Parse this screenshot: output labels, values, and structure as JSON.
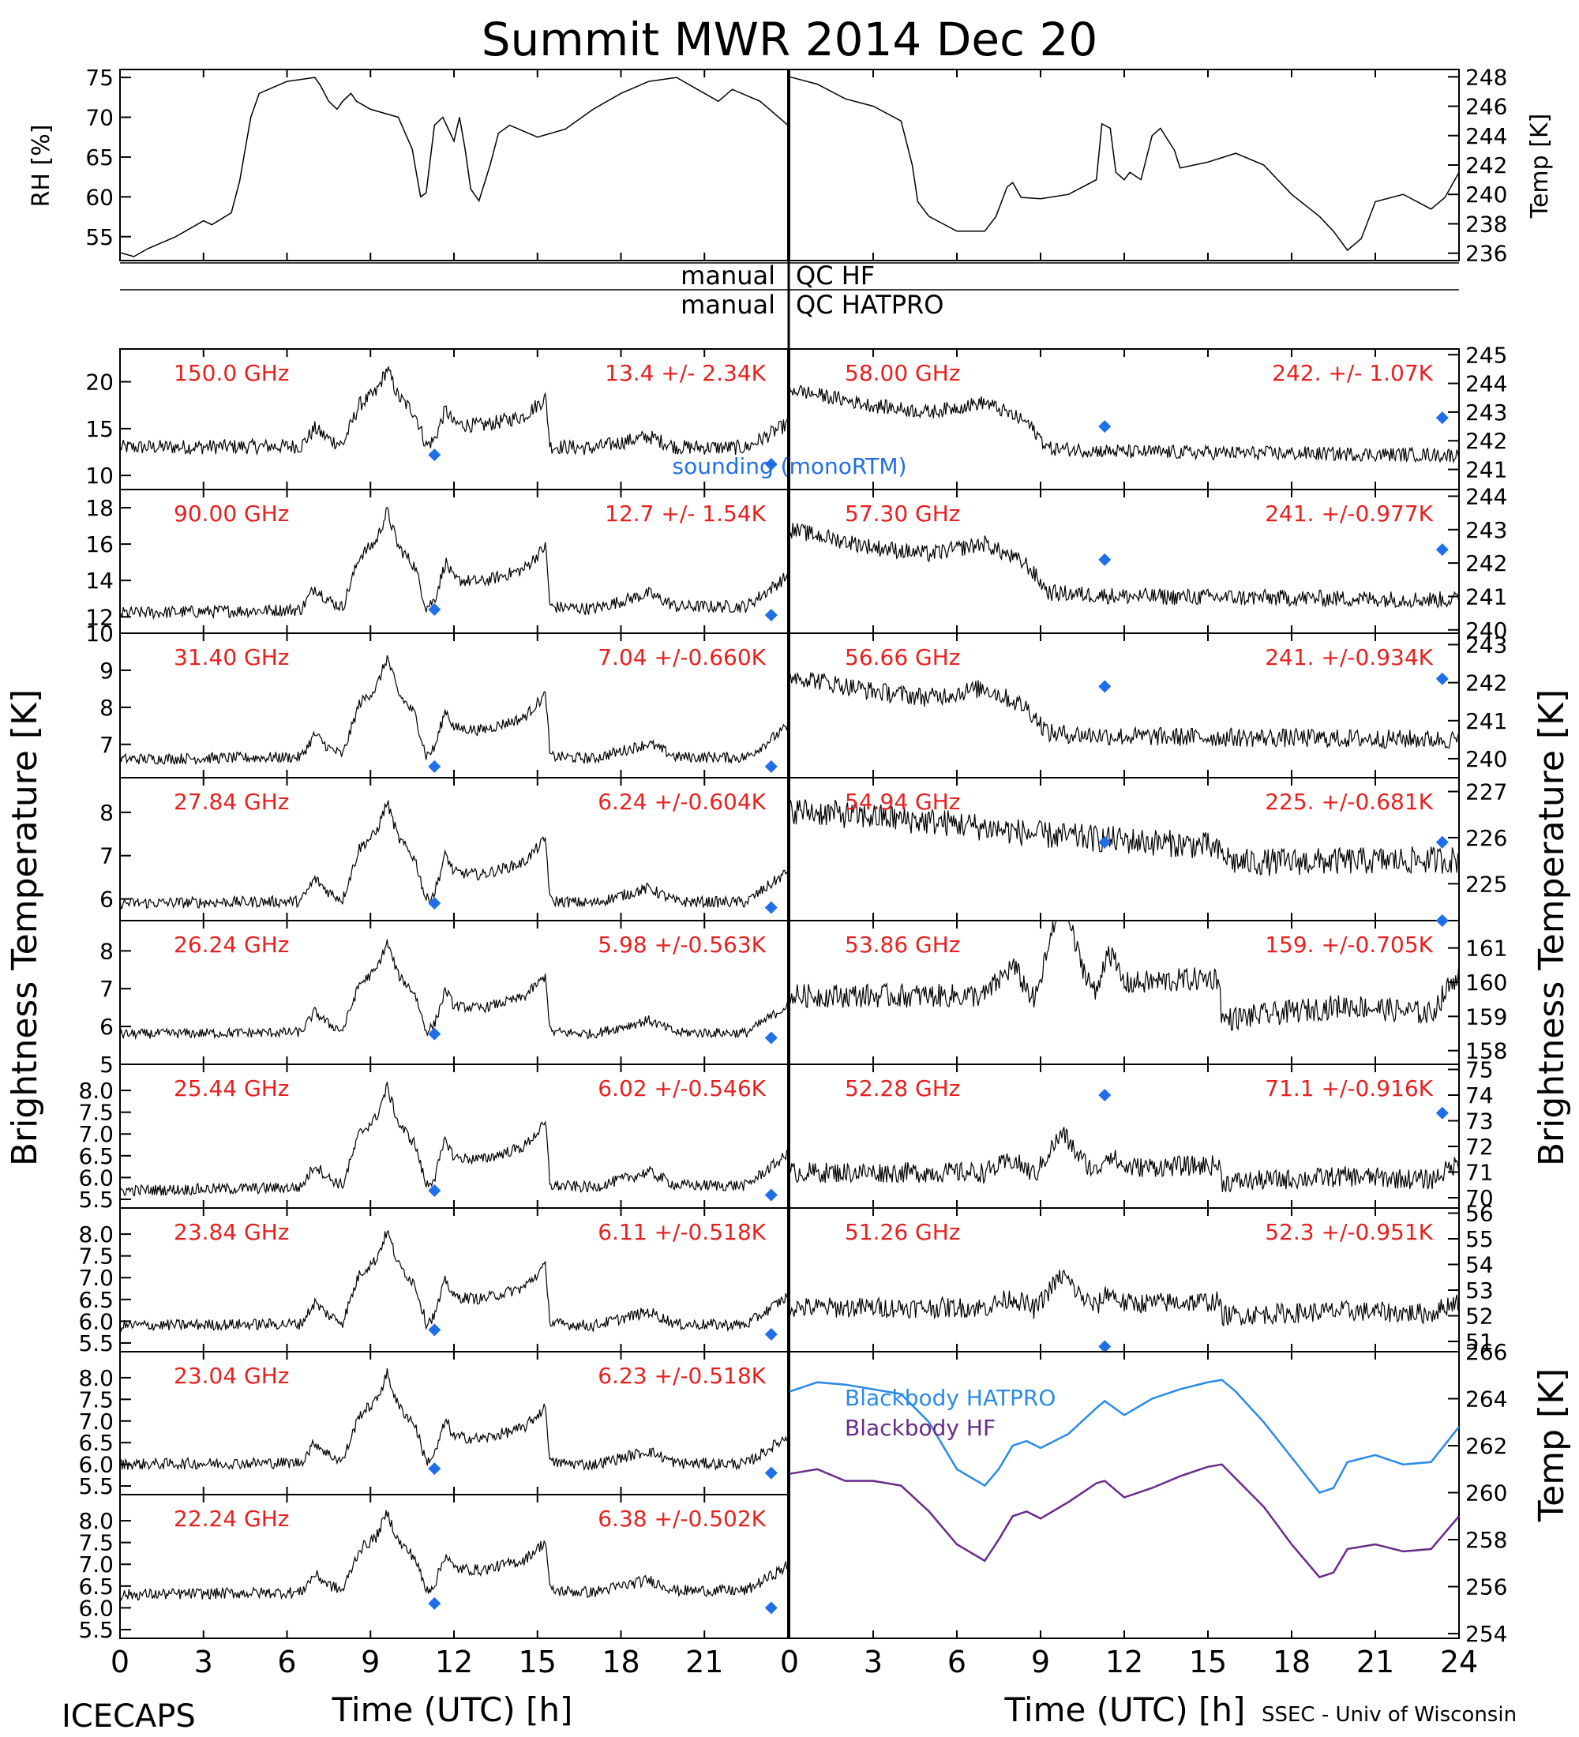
{
  "title": "Summit MWR 2014 Dec 20",
  "footer_left": "ICECAPS",
  "footer_right": "SSEC - Univ of Wisconsin",
  "x_axis": {
    "label": "Time (UTC) [h]",
    "range": [
      0,
      24
    ],
    "ticks": [
      "0",
      "3",
      "6",
      "9",
      "12",
      "15",
      "18",
      "21"
    ],
    "ticks_right": [
      "0",
      "3",
      "6",
      "9",
      "12",
      "15",
      "18",
      "21",
      "24"
    ]
  },
  "left_axis_label": "Brightness Temperature [K]",
  "right_axis_label": "Brightness Temperature [K]",
  "qc": {
    "hf": "manual QC HF",
    "hatpro": "manual QC HATPRO",
    "left_word": "manual",
    "hf_right": "QC HF",
    "hatpro_right": "QC HATPRO"
  },
  "sounding_label": "sounding (monoRTM)",
  "colors": {
    "label_red": "#e82020",
    "sounding_blue": "#1f6fe8",
    "hatpro_blue": "#2a8ae8",
    "hf_purple": "#6a2a8a"
  },
  "chart_data": [
    {
      "type": "line",
      "id": "met",
      "left": {
        "label": "RH [%]",
        "ylim": [
          52,
          76
        ],
        "ticks": [
          "55",
          "60",
          "65",
          "70",
          "75"
        ]
      },
      "right": {
        "label": "Temp [K]",
        "ylim": [
          235.5,
          248.5
        ],
        "ticks": [
          "236",
          "238",
          "240",
          "242",
          "244",
          "246",
          "248"
        ]
      },
      "series": [
        {
          "axis": "left",
          "points": [
            [
              0,
              53
            ],
            [
              0.5,
              52.5
            ],
            [
              1,
              53.5
            ],
            [
              2,
              55
            ],
            [
              3,
              57
            ],
            [
              3.3,
              56.5
            ],
            [
              4,
              58
            ],
            [
              4.3,
              62
            ],
            [
              4.5,
              66
            ],
            [
              4.7,
              70
            ],
            [
              5,
              73
            ],
            [
              6,
              74.5
            ],
            [
              7,
              75
            ],
            [
              7.2,
              74
            ],
            [
              7.5,
              72
            ],
            [
              7.8,
              71
            ],
            [
              8,
              72
            ],
            [
              8.3,
              73
            ],
            [
              8.5,
              72
            ],
            [
              9,
              71
            ],
            [
              10,
              70
            ],
            [
              10.5,
              66
            ],
            [
              10.8,
              60
            ],
            [
              11,
              60.5
            ],
            [
              11.3,
              69
            ],
            [
              11.6,
              70
            ],
            [
              12,
              67
            ],
            [
              12.2,
              70
            ],
            [
              12.4,
              66
            ],
            [
              12.6,
              61
            ],
            [
              12.9,
              59.5
            ],
            [
              13.3,
              64
            ],
            [
              13.6,
              68
            ],
            [
              14,
              69
            ],
            [
              15,
              67.5
            ],
            [
              16,
              68.5
            ],
            [
              17,
              71
            ],
            [
              18,
              73
            ],
            [
              19,
              74.5
            ],
            [
              20,
              75
            ],
            [
              21,
              73
            ],
            [
              21.5,
              72
            ],
            [
              22,
              73.5
            ],
            [
              23,
              72
            ],
            [
              24,
              69
            ]
          ]
        },
        {
          "axis": "right",
          "points": [
            [
              0,
              248
            ],
            [
              1,
              247.5
            ],
            [
              2,
              246.5
            ],
            [
              3,
              246
            ],
            [
              4,
              245
            ],
            [
              4.4,
              242
            ],
            [
              4.6,
              239.5
            ],
            [
              5,
              238.5
            ],
            [
              6,
              237.5
            ],
            [
              7,
              237.5
            ],
            [
              7.4,
              238.5
            ],
            [
              7.8,
              240.5
            ],
            [
              8,
              240.8
            ],
            [
              8.3,
              239.8
            ],
            [
              9,
              239.7
            ],
            [
              10,
              240
            ],
            [
              10.5,
              240.5
            ],
            [
              11,
              241
            ],
            [
              11.2,
              244.8
            ],
            [
              11.5,
              244.5
            ],
            [
              11.7,
              241.5
            ],
            [
              12,
              241
            ],
            [
              12.2,
              241.5
            ],
            [
              12.6,
              241
            ],
            [
              13,
              244
            ],
            [
              13.3,
              244.5
            ],
            [
              13.8,
              243
            ],
            [
              14,
              241.8
            ],
            [
              15,
              242.2
            ],
            [
              16,
              242.8
            ],
            [
              17,
              242
            ],
            [
              18,
              240
            ],
            [
              19,
              238.5
            ],
            [
              19.5,
              237.5
            ],
            [
              20,
              236.2
            ],
            [
              20.5,
              237
            ],
            [
              21,
              239.5
            ],
            [
              22,
              240
            ],
            [
              23,
              239
            ],
            [
              23.5,
              239.8
            ],
            [
              24,
              241.5
            ]
          ]
        }
      ]
    },
    {
      "type": "line",
      "id": "ch-150",
      "panel": "left",
      "label": "150.0 GHz",
      "stats": "13.4 +/- 2.34K",
      "ylim": [
        8.5,
        23.5
      ],
      "ticks": [
        "10",
        "15",
        "20"
      ],
      "baseline": [
        13,
        12.5
      ],
      "noise": 0.8,
      "sounding": [
        [
          11.3,
          12.2
        ],
        [
          23.4,
          11.2
        ]
      ]
    },
    {
      "type": "line",
      "id": "ch-90",
      "panel": "left",
      "label": "90.00 GHz",
      "stats": "12.7 +/- 1.54K",
      "ylim": [
        11.1,
        19
      ],
      "ticks": [
        "12",
        "14",
        "16",
        "18"
      ],
      "baseline": [
        12.2,
        12.3
      ],
      "noise": 0.35,
      "sounding": [
        [
          11.3,
          12.4
        ],
        [
          23.4,
          12.1
        ]
      ]
    },
    {
      "type": "line",
      "id": "ch-3140",
      "panel": "left",
      "label": "31.40 GHz",
      "stats": "7.04 +/-0.660K",
      "ylim": [
        6.1,
        10
      ],
      "ticks": [
        "7",
        "8",
        "9",
        "10"
      ],
      "baseline": [
        6.6,
        6.5
      ],
      "noise": 0.15,
      "sounding": [
        [
          11.3,
          6.4
        ],
        [
          23.4,
          6.4
        ]
      ]
    },
    {
      "type": "line",
      "id": "ch-2784",
      "panel": "left",
      "label": "27.84 GHz",
      "stats": "6.24 +/-0.604K",
      "ylim": [
        5.5,
        8.8
      ],
      "ticks": [
        "6",
        "7",
        "8"
      ],
      "baseline": [
        5.9,
        5.8
      ],
      "noise": 0.13,
      "sounding": [
        [
          11.3,
          5.9
        ],
        [
          23.4,
          5.8
        ]
      ]
    },
    {
      "type": "line",
      "id": "ch-2624",
      "panel": "left",
      "label": "26.24 GHz",
      "stats": "5.98 +/-0.563K",
      "ylim": [
        5,
        8.8
      ],
      "ticks": [
        "5",
        "6",
        "7",
        "8"
      ],
      "baseline": [
        5.8,
        5.7
      ],
      "noise": 0.13,
      "sounding": [
        [
          11.3,
          5.8
        ],
        [
          23.4,
          5.7
        ]
      ]
    },
    {
      "type": "line",
      "id": "ch-2544",
      "panel": "left",
      "label": "25.44 GHz",
      "stats": "6.02 +/-0.546K",
      "ylim": [
        5.3,
        8.6
      ],
      "ticks": [
        "5.5",
        "6.0",
        "6.5",
        "7.0",
        "7.5",
        "8.0"
      ],
      "baseline": [
        5.7,
        5.7
      ],
      "noise": 0.13,
      "sounding": [
        [
          11.3,
          5.7
        ],
        [
          23.4,
          5.6
        ]
      ]
    },
    {
      "type": "line",
      "id": "ch-2384",
      "panel": "left",
      "label": "23.84 GHz",
      "stats": "6.11 +/-0.518K",
      "ylim": [
        5.3,
        8.6
      ],
      "ticks": [
        "5.5",
        "6.0",
        "6.5",
        "7.0",
        "7.5",
        "8.0"
      ],
      "baseline": [
        5.9,
        5.8
      ],
      "noise": 0.13,
      "sounding": [
        [
          11.3,
          5.8
        ],
        [
          23.4,
          5.7
        ]
      ]
    },
    {
      "type": "line",
      "id": "ch-2304",
      "panel": "left",
      "label": "23.04 GHz",
      "stats": "6.23 +/-0.518K",
      "ylim": [
        5.3,
        8.6
      ],
      "ticks": [
        "5.5",
        "6.0",
        "6.5",
        "7.0",
        "7.5",
        "8.0"
      ],
      "baseline": [
        6.0,
        5.9
      ],
      "noise": 0.13,
      "sounding": [
        [
          11.3,
          5.9
        ],
        [
          23.4,
          5.8
        ]
      ]
    },
    {
      "type": "line",
      "id": "ch-2224",
      "panel": "left",
      "label": "22.24 GHz",
      "stats": "6.38 +/-0.502K",
      "ylim": [
        5.3,
        8.6
      ],
      "ticks": [
        "5.5",
        "6.0",
        "6.5",
        "7.0",
        "7.5",
        "8.0"
      ],
      "baseline": [
        6.3,
        6.3
      ],
      "noise": 0.13,
      "sounding": [
        [
          11.3,
          6.1
        ],
        [
          23.4,
          6.0
        ]
      ]
    },
    {
      "type": "line",
      "id": "ch-5800",
      "panel": "right",
      "label": "58.00 GHz",
      "stats": "242. +/- 1.07K",
      "ylim": [
        240.3,
        245.2
      ],
      "ticks": [
        "241",
        "242",
        "243",
        "244",
        "245"
      ],
      "profile": "warm-decline",
      "hi": 243.8,
      "lo": 241.5,
      "noise": 0.25,
      "sounding": [
        [
          11.3,
          242.5
        ],
        [
          23.4,
          242.8
        ]
      ]
    },
    {
      "type": "line",
      "id": "ch-5730",
      "panel": "right",
      "label": "57.30 GHz",
      "stats": "241. +/-0.977K",
      "ylim": [
        239.9,
        244.2
      ],
      "ticks": [
        "240",
        "241",
        "242",
        "243",
        "244"
      ],
      "profile": "warm-decline",
      "hi": 243,
      "lo": 240.9,
      "noise": 0.25,
      "sounding": [
        [
          11.3,
          242.1
        ],
        [
          23.4,
          242.4
        ]
      ]
    },
    {
      "type": "line",
      "id": "ch-5666",
      "panel": "right",
      "label": "56.66 GHz",
      "stats": "241. +/-0.934K",
      "ylim": [
        239.5,
        243.3
      ],
      "ticks": [
        "240",
        "241",
        "242",
        "243"
      ],
      "profile": "warm-decline",
      "hi": 242.2,
      "lo": 240.5,
      "noise": 0.25,
      "sounding": [
        [
          11.3,
          241.9
        ],
        [
          23.4,
          242.1
        ]
      ]
    },
    {
      "type": "line",
      "id": "ch-5494",
      "panel": "right",
      "label": "54.94 GHz",
      "stats": "225. +/-0.681K",
      "ylim": [
        224.2,
        227.3
      ],
      "ticks": [
        "225",
        "226",
        "227"
      ],
      "profile": "slow-decline",
      "hi": 226.6,
      "lo": 225.4,
      "noise": 0.3,
      "sounding": [
        [
          11.3,
          225.9
        ],
        [
          23.4,
          225.9
        ]
      ]
    },
    {
      "type": "line",
      "id": "ch-5386",
      "panel": "right",
      "label": "53.86 GHz",
      "stats": "159. +/-0.705K",
      "ylim": [
        157.6,
        161.8
      ],
      "ticks": [
        "158",
        "159",
        "160",
        "161"
      ],
      "profile": "bump",
      "hi": 160,
      "lo": 158.9,
      "noise": 0.35,
      "sounding": [
        [
          23.4,
          161.8
        ]
      ]
    },
    {
      "type": "line",
      "id": "ch-5228",
      "panel": "right",
      "label": "52.28 GHz",
      "stats": "71.1 +/-0.916K",
      "ylim": [
        69.6,
        75.2
      ],
      "ticks": [
        "70",
        "71",
        "72",
        "73",
        "74",
        "75"
      ],
      "profile": "bump",
      "hi": 71.2,
      "lo": 70.6,
      "noise": 0.4,
      "sounding": [
        [
          11.3,
          74
        ],
        [
          23.4,
          73.3
        ]
      ]
    },
    {
      "type": "line",
      "id": "ch-5126",
      "panel": "right",
      "label": "51.26 GHz",
      "stats": "52.3 +/-0.951K",
      "ylim": [
        50.6,
        56.2
      ],
      "ticks": [
        "51",
        "52",
        "53",
        "54",
        "55",
        "56"
      ],
      "profile": "bump",
      "hi": 52.5,
      "lo": 52,
      "noise": 0.4,
      "sounding": [
        [
          11.3,
          50.8
        ]
      ]
    },
    {
      "type": "line",
      "id": "blackbody",
      "ylim": [
        253.8,
        266
      ],
      "ticks": [
        "254",
        "256",
        "258",
        "260",
        "262",
        "264",
        "266"
      ],
      "axis_label": "Temp [K]",
      "series": [
        {
          "name": "Blackbody HATPRO",
          "color": "#2a8ae8",
          "points": [
            [
              0,
              264.3
            ],
            [
              1,
              264.7
            ],
            [
              2,
              264.6
            ],
            [
              3,
              264.4
            ],
            [
              4,
              264.2
            ],
            [
              5,
              263
            ],
            [
              6,
              261
            ],
            [
              7,
              260.3
            ],
            [
              7.5,
              261
            ],
            [
              8,
              262
            ],
            [
              8.5,
              262.2
            ],
            [
              9,
              261.9
            ],
            [
              10,
              262.5
            ],
            [
              11,
              263.6
            ],
            [
              11.3,
              263.9
            ],
            [
              12,
              263.3
            ],
            [
              13,
              264
            ],
            [
              14,
              264.4
            ],
            [
              15,
              264.7
            ],
            [
              15.5,
              264.8
            ],
            [
              16,
              264.3
            ],
            [
              17,
              263
            ],
            [
              18,
              261.5
            ],
            [
              19,
              260
            ],
            [
              19.5,
              260.2
            ],
            [
              20,
              261.3
            ],
            [
              21,
              261.6
            ],
            [
              22,
              261.2
            ],
            [
              23,
              261.3
            ],
            [
              24,
              262.8
            ]
          ]
        },
        {
          "name": "Blackbody HF",
          "color": "#6a2a8a",
          "points": [
            [
              0,
              260.8
            ],
            [
              1,
              261
            ],
            [
              2,
              260.5
            ],
            [
              3,
              260.5
            ],
            [
              4,
              260.3
            ],
            [
              5,
              259.2
            ],
            [
              6,
              257.8
            ],
            [
              7,
              257.1
            ],
            [
              7.5,
              258
            ],
            [
              8,
              259
            ],
            [
              8.5,
              259.2
            ],
            [
              9,
              258.9
            ],
            [
              10,
              259.6
            ],
            [
              11,
              260.4
            ],
            [
              11.3,
              260.5
            ],
            [
              12,
              259.8
            ],
            [
              13,
              260.2
            ],
            [
              14,
              260.7
            ],
            [
              15,
              261.1
            ],
            [
              15.5,
              261.2
            ],
            [
              16,
              260.6
            ],
            [
              17,
              259.4
            ],
            [
              18,
              257.8
            ],
            [
              19,
              256.4
            ],
            [
              19.5,
              256.6
            ],
            [
              20,
              257.6
            ],
            [
              21,
              257.8
            ],
            [
              22,
              257.5
            ],
            [
              23,
              257.6
            ],
            [
              24,
              259
            ]
          ]
        }
      ]
    }
  ]
}
